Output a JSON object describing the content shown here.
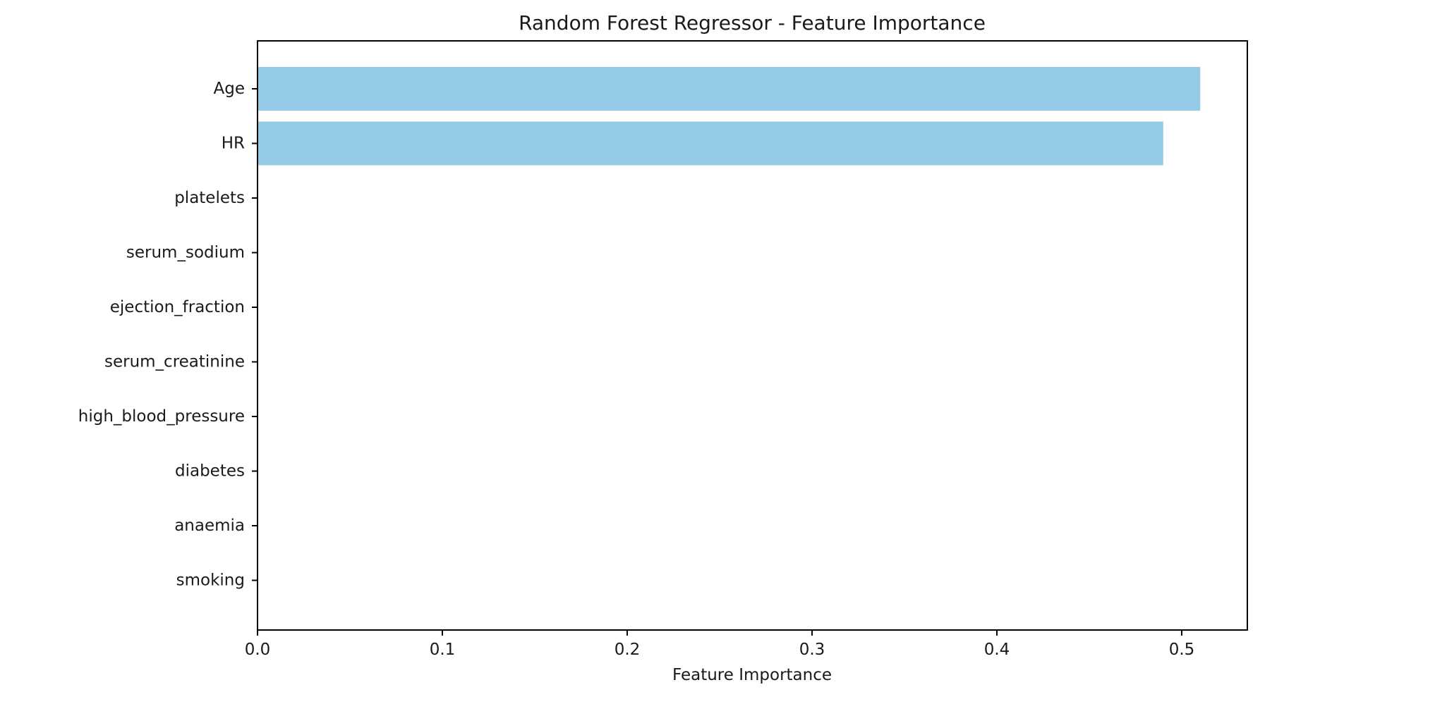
{
  "chart_data": {
    "type": "bar",
    "orientation": "horizontal",
    "title": "Random Forest Regressor - Feature Importance",
    "xlabel": "Feature Importance",
    "ylabel": "",
    "categories": [
      "Age",
      "HR",
      "platelets",
      "serum_sodium",
      "ejection_fraction",
      "serum_creatinine",
      "high_blood_pressure",
      "diabetes",
      "anaemia",
      "smoking"
    ],
    "values": [
      0.51,
      0.49,
      0.0,
      0.0,
      0.0,
      0.0,
      0.0,
      0.0,
      0.0,
      0.0
    ],
    "xlim": [
      0,
      0.5355
    ],
    "xticks": [
      0.0,
      0.1,
      0.2,
      0.3,
      0.4,
      0.5
    ],
    "xtick_labels": [
      "0.0",
      "0.1",
      "0.2",
      "0.3",
      "0.4",
      "0.5"
    ],
    "bar_color": "#96cbe7",
    "grid": false,
    "legend": "none"
  }
}
